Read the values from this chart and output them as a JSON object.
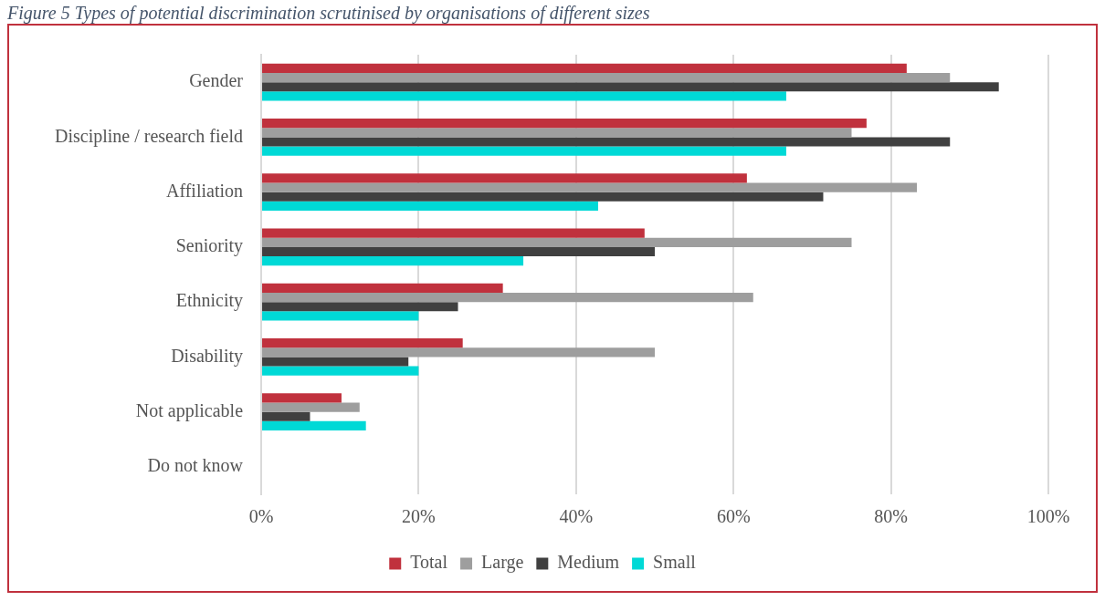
{
  "chart_data": {
    "type": "bar",
    "orientation": "horizontal",
    "title": "Figure 5 Types of potential discrimination scrutinised by organisations of different sizes",
    "categories": [
      "Gender",
      "Discipline / research field",
      "Affiliation",
      "Seniority",
      "Ethnicity",
      "Disability",
      "Not applicable",
      "Do not know"
    ],
    "series": [
      {
        "name": "Total",
        "color": "#c0313d",
        "values": [
          82,
          76.9,
          61.7,
          48.7,
          30.7,
          25.6,
          10.2,
          0
        ]
      },
      {
        "name": "Large",
        "color": "#9e9e9e",
        "values": [
          87.5,
          75,
          83.3,
          75,
          62.5,
          50,
          12.5,
          0
        ]
      },
      {
        "name": "Medium",
        "color": "#404040",
        "values": [
          93.7,
          87.5,
          71.4,
          50,
          25,
          18.7,
          6.2,
          0
        ]
      },
      {
        "name": "Small",
        "color": "#00d9d6",
        "values": [
          66.7,
          66.7,
          42.8,
          33.3,
          20,
          20,
          13.3,
          0
        ]
      }
    ],
    "xlim": [
      0,
      100
    ],
    "xticks": [
      {
        "value": 0,
        "label": "0%"
      },
      {
        "value": 20,
        "label": "20%"
      },
      {
        "value": 40,
        "label": "40%"
      },
      {
        "value": 60,
        "label": "60%"
      },
      {
        "value": 80,
        "label": "80%"
      },
      {
        "value": 100,
        "label": "100%"
      }
    ],
    "grid": "x",
    "legend": "bottom"
  }
}
